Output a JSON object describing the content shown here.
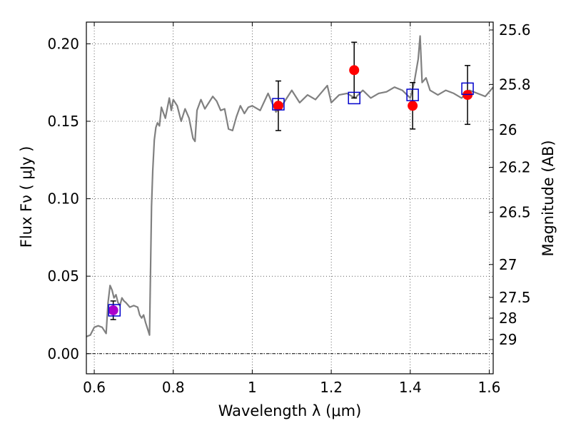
{
  "chart_data": {
    "type": "scatter",
    "xlabel": "Wavelength  λ (μm)",
    "ylabel": "Flux  Fν  ( μJy )",
    "y2label": "Magnitude (AB)",
    "xlim": [
      0.58,
      1.61
    ],
    "ylim": [
      -0.013,
      0.214
    ],
    "x_ticks": [
      0.6,
      0.8,
      1.0,
      1.2,
      1.4,
      1.6
    ],
    "x_tick_labels": [
      "0.6",
      "0.8",
      "1",
      "1.2",
      "1.4",
      "1.6"
    ],
    "y_ticks": [
      0.0,
      0.05,
      0.1,
      0.15,
      0.2
    ],
    "y_tick_labels": [
      "0.00",
      "0.05",
      "0.10",
      "0.15",
      "0.20"
    ],
    "mag_ticks": [
      25.6,
      25.8,
      26,
      26.2,
      26.5,
      27,
      27.5,
      28,
      29
    ],
    "mag_tick_labels": [
      "25.6",
      "25.8",
      "26",
      "26.2",
      "26.5",
      "27",
      "27.5",
      "28",
      "29"
    ],
    "grid": true,
    "zero_line": true,
    "colors": {
      "model": "#808080",
      "observed": "#ff0000",
      "observed_first": "#aa00cc",
      "synthetic": "#0000cc",
      "errorbar": "#000000"
    },
    "model_spectrum": {
      "x": [
        0.58,
        0.59,
        0.6,
        0.61,
        0.62,
        0.63,
        0.635,
        0.64,
        0.645,
        0.65,
        0.655,
        0.66,
        0.665,
        0.67,
        0.675,
        0.68,
        0.69,
        0.7,
        0.71,
        0.715,
        0.72,
        0.725,
        0.73,
        0.735,
        0.74,
        0.745,
        0.748,
        0.752,
        0.756,
        0.76,
        0.765,
        0.77,
        0.78,
        0.79,
        0.795,
        0.8,
        0.81,
        0.82,
        0.83,
        0.84,
        0.85,
        0.855,
        0.86,
        0.87,
        0.88,
        0.89,
        0.9,
        0.91,
        0.92,
        0.93,
        0.94,
        0.95,
        0.96,
        0.97,
        0.98,
        0.99,
        1.0,
        1.02,
        1.04,
        1.06,
        1.08,
        1.1,
        1.12,
        1.14,
        1.16,
        1.18,
        1.19,
        1.2,
        1.22,
        1.24,
        1.26,
        1.28,
        1.3,
        1.32,
        1.34,
        1.36,
        1.38,
        1.4,
        1.41,
        1.42,
        1.425,
        1.43,
        1.44,
        1.45,
        1.47,
        1.49,
        1.51,
        1.53,
        1.55,
        1.57,
        1.59,
        1.61
      ],
      "y": [
        0.011,
        0.012,
        0.017,
        0.018,
        0.017,
        0.013,
        0.033,
        0.044,
        0.041,
        0.036,
        0.038,
        0.033,
        0.031,
        0.036,
        0.034,
        0.033,
        0.03,
        0.031,
        0.03,
        0.025,
        0.023,
        0.025,
        0.02,
        0.016,
        0.012,
        0.095,
        0.118,
        0.138,
        0.146,
        0.149,
        0.147,
        0.159,
        0.152,
        0.165,
        0.157,
        0.164,
        0.16,
        0.15,
        0.158,
        0.152,
        0.139,
        0.137,
        0.157,
        0.164,
        0.158,
        0.162,
        0.166,
        0.163,
        0.157,
        0.158,
        0.145,
        0.144,
        0.153,
        0.16,
        0.155,
        0.159,
        0.16,
        0.157,
        0.168,
        0.156,
        0.162,
        0.17,
        0.162,
        0.167,
        0.164,
        0.17,
        0.173,
        0.162,
        0.167,
        0.168,
        0.165,
        0.17,
        0.165,
        0.168,
        0.169,
        0.172,
        0.17,
        0.165,
        0.175,
        0.19,
        0.205,
        0.175,
        0.178,
        0.17,
        0.167,
        0.17,
        0.168,
        0.165,
        0.17,
        0.168,
        0.166,
        0.172
      ]
    },
    "observed": [
      {
        "x": 0.648,
        "y": 0.028,
        "err": 0.006
      },
      {
        "x": 1.066,
        "y": 0.16,
        "err": 0.016
      },
      {
        "x": 1.258,
        "y": 0.183,
        "err": 0.018
      },
      {
        "x": 1.406,
        "y": 0.16,
        "err": 0.015
      },
      {
        "x": 1.545,
        "y": 0.167,
        "err": 0.019
      }
    ],
    "synthetic": [
      {
        "x": 0.651,
        "y": 0.028
      },
      {
        "x": 1.066,
        "y": 0.161
      },
      {
        "x": 1.258,
        "y": 0.165
      },
      {
        "x": 1.406,
        "y": 0.167
      },
      {
        "x": 1.545,
        "y": 0.171
      }
    ]
  }
}
